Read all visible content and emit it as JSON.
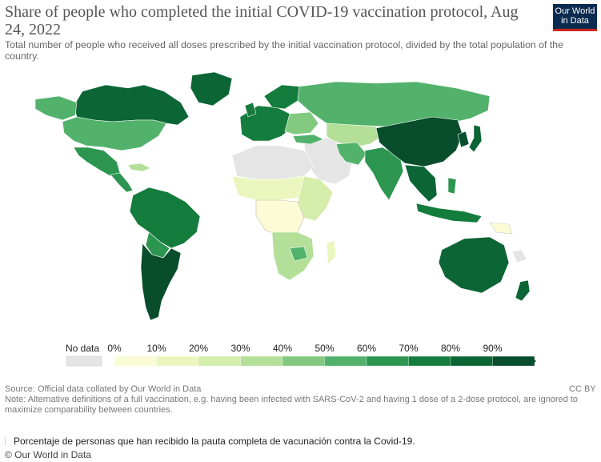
{
  "title": "Share of people who completed the initial COVID-19 vaccination protocol, Aug 24, 2022",
  "subtitle": "Total number of people who received all doses prescribed by the initial vaccination protocol, divided by the total population of the country.",
  "logo": {
    "line1": "Our World",
    "line2": "in Data"
  },
  "legend": {
    "no_data_label": "No data",
    "no_data_color": "#e5e5e5",
    "ticks": [
      "0%",
      "10%",
      "20%",
      "30%",
      "40%",
      "50%",
      "60%",
      "70%",
      "80%",
      "90%"
    ],
    "colors": [
      "#fbfcd6",
      "#ebf6bf",
      "#d5edab",
      "#b3df98",
      "#82c97f",
      "#52b26b",
      "#2c9650",
      "#147c3c",
      "#0b6535",
      "#084d2c"
    ]
  },
  "source": "Source: Official data collated by Our World in Data",
  "license": "CC BY",
  "note": "Note: Alternative definitions of a full vaccination, e.g. having been infected with SARS-CoV-2 and having 1 dose of a 2-dose protocol, are ignored to maximize comparability between countries.",
  "caption": "Porcentaje de personas que han recibido la pauta completa de vacunación contra la Covid-19.",
  "credit": "© Our World in Data"
}
